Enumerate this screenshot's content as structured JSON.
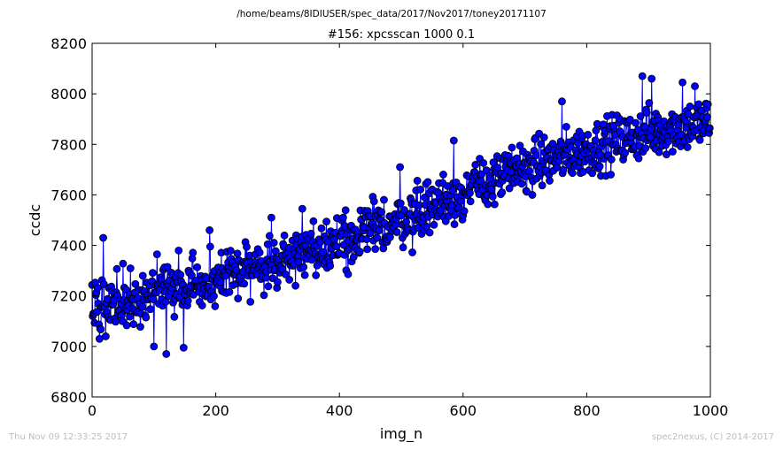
{
  "figure": {
    "suptitle": "/home/beams/8IDIUSER/spec_data/2017/Nov2017/toney20171107",
    "footer_left": "Thu Nov 09 12:33:25 2017",
    "footer_right": "spec2nexus, (C) 2014-2017"
  },
  "colors": {
    "series": "#0000ff",
    "marker_edge": "#000000",
    "axes": "#000000",
    "footer_text": "#bdbdbd"
  },
  "chart_data": {
    "type": "line",
    "title": "#156: xpcsscan 1000 0.1",
    "xlabel": "img_n",
    "ylabel": "ccdc",
    "xlim": [
      0,
      1000
    ],
    "ylim": [
      6800,
      8200
    ],
    "xticks": [
      0,
      200,
      400,
      600,
      800,
      1000
    ],
    "yticks": [
      6800,
      7000,
      7200,
      7400,
      7600,
      7800,
      8000,
      8200
    ],
    "xtick_labels": [
      "0",
      "200",
      "400",
      "600",
      "800",
      "1000"
    ],
    "ytick_labels": [
      "6800",
      "7000",
      "7200",
      "7400",
      "7600",
      "7800",
      "8000",
      "8200"
    ],
    "grid": false,
    "marker": "circle",
    "series": [
      {
        "name": "",
        "trend": [
          [
            0,
            7170
          ],
          [
            100,
            7210
          ],
          [
            200,
            7260
          ],
          [
            300,
            7340
          ],
          [
            400,
            7420
          ],
          [
            500,
            7500
          ],
          [
            600,
            7610
          ],
          [
            700,
            7710
          ],
          [
            800,
            7780
          ],
          [
            900,
            7850
          ],
          [
            1000,
            7890
          ]
        ],
        "noise_amplitude": 70,
        "n_points": 1000,
        "notable_points": [
          [
            18,
            7430
          ],
          [
            22,
            7040
          ],
          [
            12,
            7030
          ],
          [
            100,
            7000
          ],
          [
            120,
            6970
          ],
          [
            148,
            6995
          ],
          [
            190,
            7460
          ],
          [
            290,
            7510
          ],
          [
            340,
            7545
          ],
          [
            498,
            7710
          ],
          [
            585,
            7815
          ],
          [
            760,
            7970
          ],
          [
            890,
            8070
          ],
          [
            905,
            8060
          ],
          [
            955,
            8045
          ],
          [
            975,
            8030
          ],
          [
            998,
            8025
          ],
          [
            998,
            7845
          ]
        ]
      }
    ]
  }
}
